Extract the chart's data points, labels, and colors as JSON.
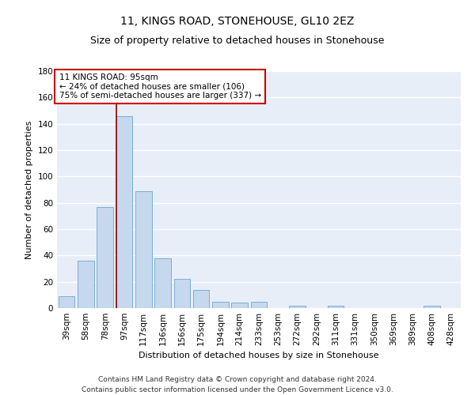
{
  "title1": "11, KINGS ROAD, STONEHOUSE, GL10 2EZ",
  "title2": "Size of property relative to detached houses in Stonehouse",
  "xlabel": "Distribution of detached houses by size in Stonehouse",
  "ylabel": "Number of detached properties",
  "categories": [
    "39sqm",
    "58sqm",
    "78sqm",
    "97sqm",
    "117sqm",
    "136sqm",
    "156sqm",
    "175sqm",
    "194sqm",
    "214sqm",
    "233sqm",
    "253sqm",
    "272sqm",
    "292sqm",
    "311sqm",
    "331sqm",
    "350sqm",
    "369sqm",
    "389sqm",
    "408sqm",
    "428sqm"
  ],
  "values": [
    9,
    36,
    77,
    146,
    89,
    38,
    22,
    14,
    5,
    4,
    5,
    0,
    2,
    0,
    2,
    0,
    0,
    0,
    0,
    2,
    0
  ],
  "bar_color": "#c5d8ed",
  "bar_edge_color": "#7aaed6",
  "vline_color": "#8b0000",
  "annotation_box_text": "11 KINGS ROAD: 95sqm\n← 24% of detached houses are smaller (106)\n75% of semi-detached houses are larger (337) →",
  "annotation_box_color": "#ffffff",
  "annotation_box_edge": "#cc0000",
  "ylim": [
    0,
    180
  ],
  "yticks": [
    0,
    20,
    40,
    60,
    80,
    100,
    120,
    140,
    160,
    180
  ],
  "footer1": "Contains HM Land Registry data © Crown copyright and database right 2024.",
  "footer2": "Contains public sector information licensed under the Open Government Licence v3.0.",
  "bg_color": "#e8eef7",
  "grid_color": "#ffffff",
  "fig_bg_color": "#ffffff",
  "title1_fontsize": 10,
  "title2_fontsize": 9,
  "axis_label_fontsize": 8,
  "tick_fontsize": 7.5,
  "annotation_fontsize": 7.5,
  "footer_fontsize": 6.5
}
